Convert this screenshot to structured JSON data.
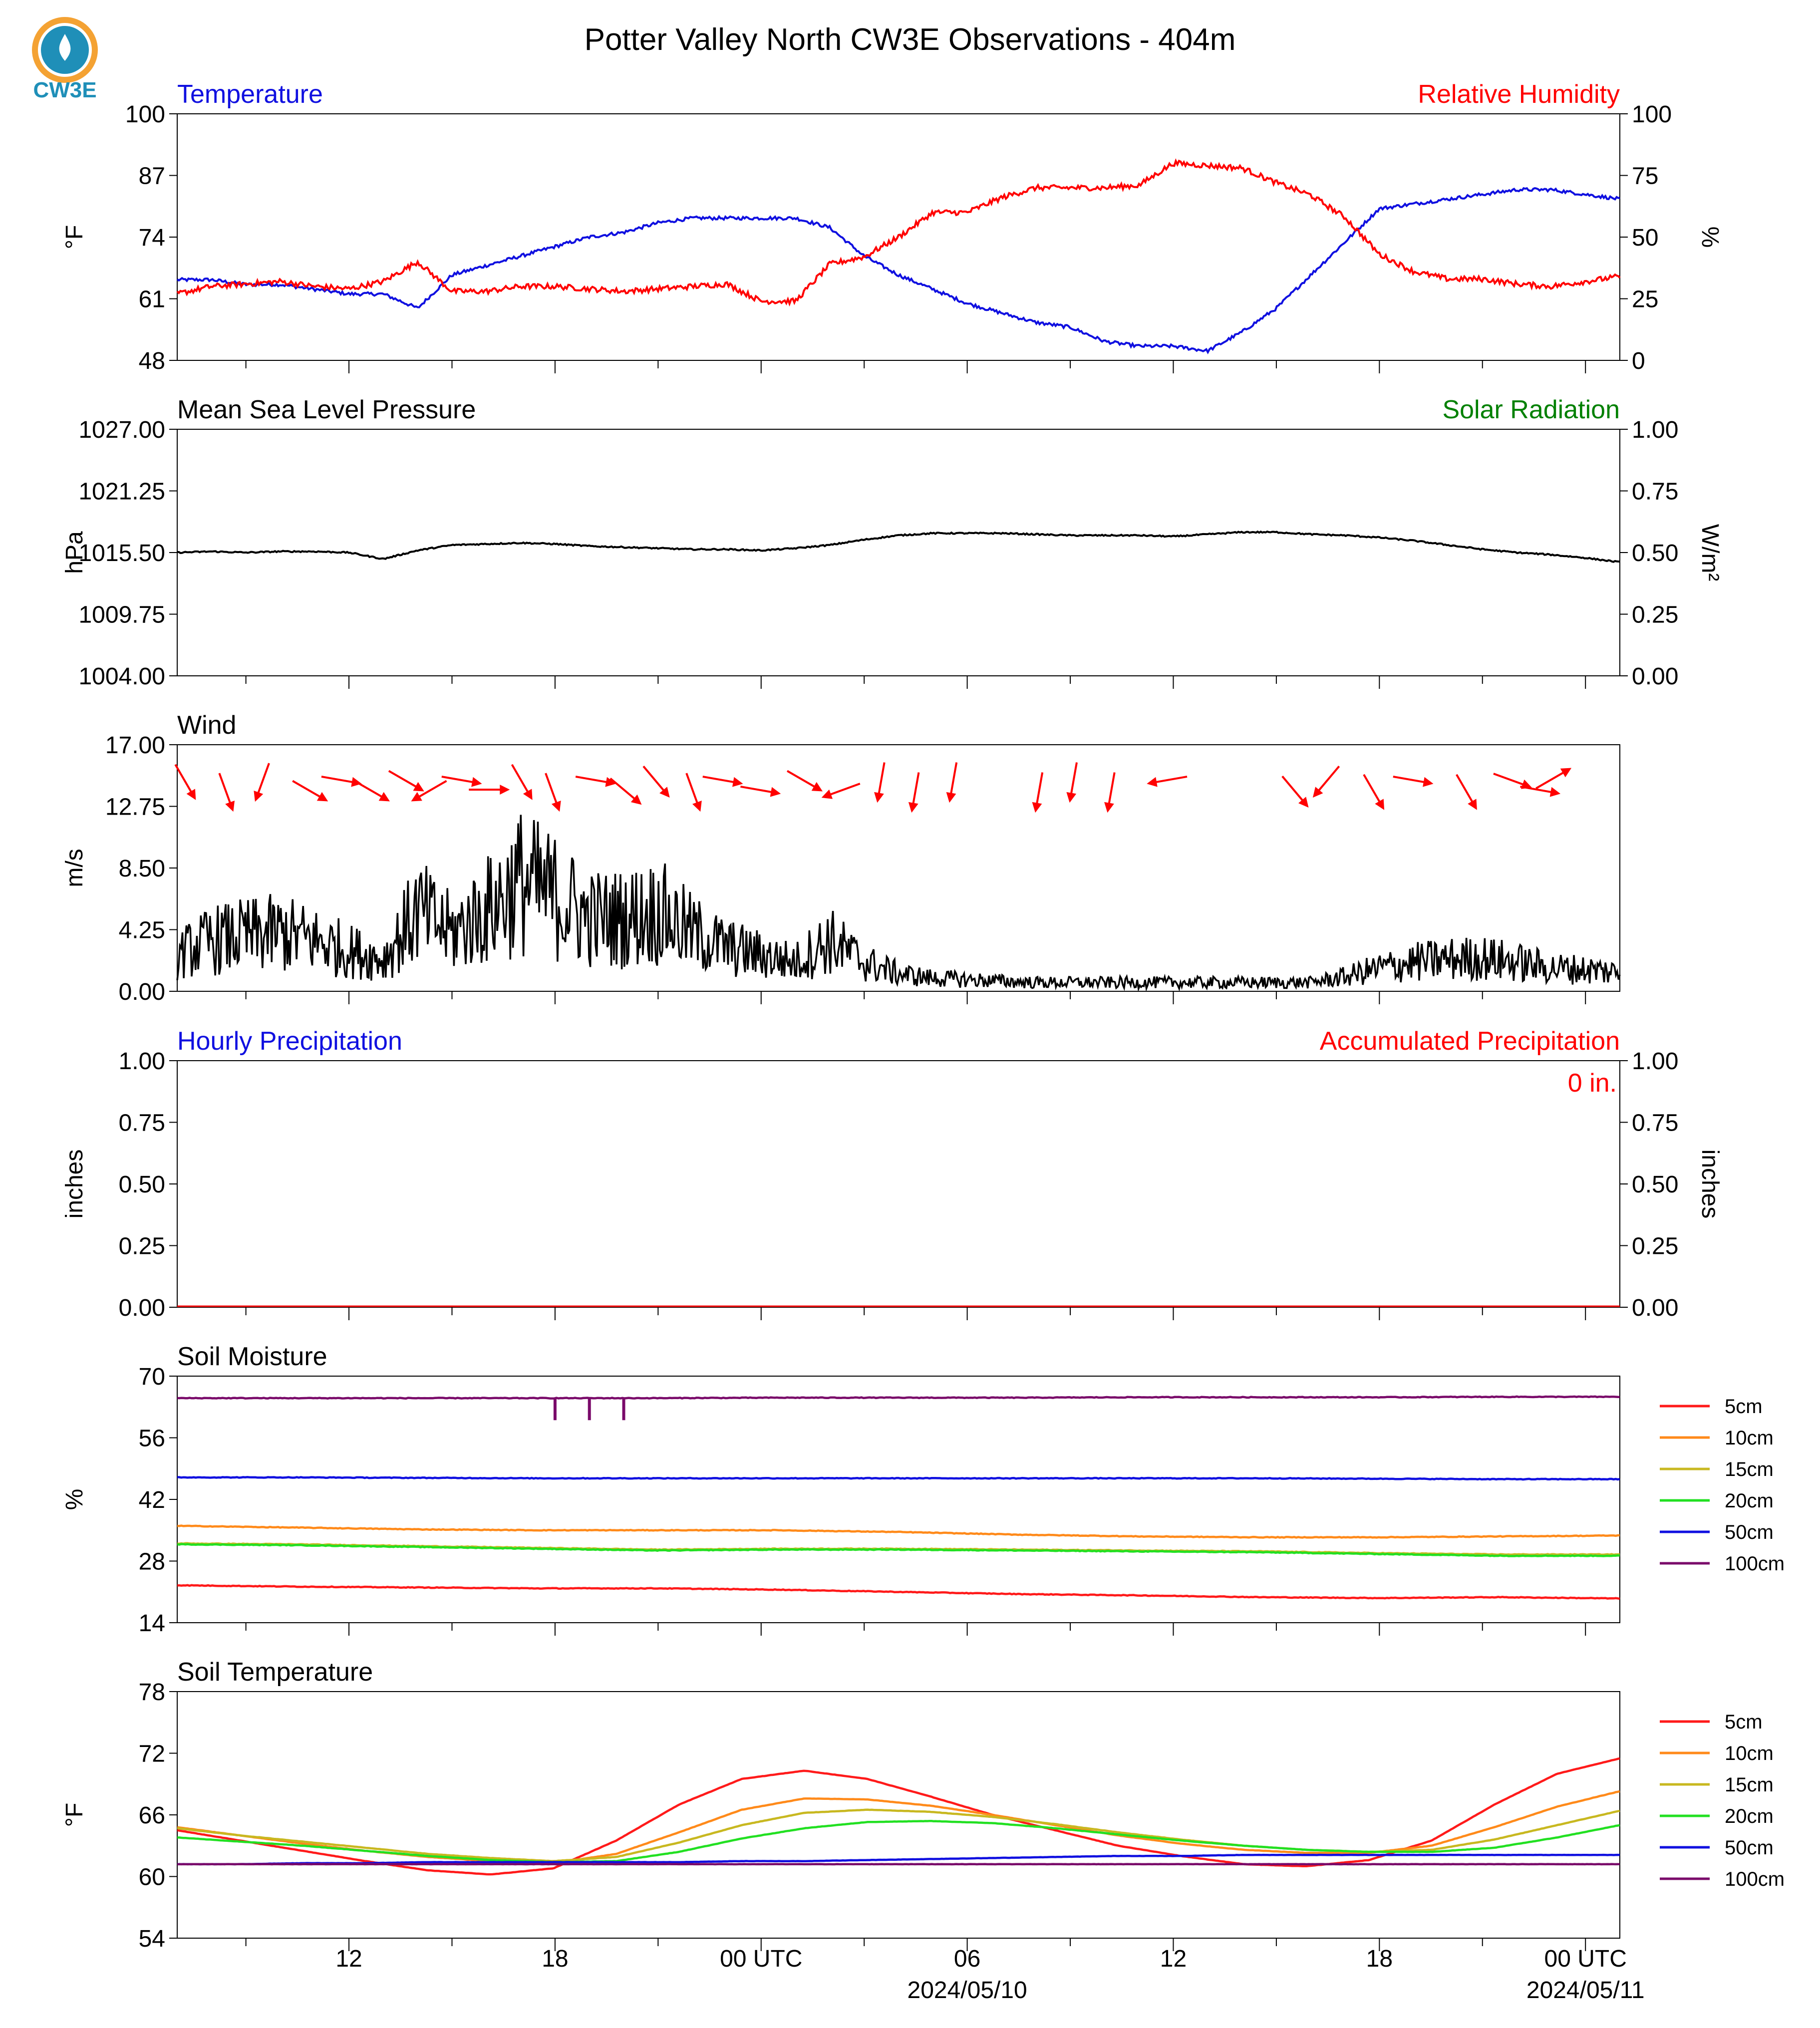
{
  "figure": {
    "title": "Potter Valley North CW3E Observations - 404m",
    "logo_text": "CW3E",
    "x_axis": {
      "hour_ticks": [
        "12",
        "18",
        "00 UTC",
        "06",
        "12",
        "18",
        "00 UTC"
      ],
      "date_labels": [
        "2024/05/10",
        "2024/05/11"
      ]
    }
  },
  "colors": {
    "temperature": "#1010e0",
    "humidity": "#ff0000",
    "pressure": "#000000",
    "solar": "#008000",
    "wind": "#000000",
    "wind_arrow": "#ff0000",
    "hourly_precip": "#1010e0",
    "accum_precip": "#ff0000",
    "logo": "#1f8fb8",
    "logo_accent": "#f4a233",
    "depth_5cm": "#ff1a1a",
    "depth_10cm": "#ff8a1a",
    "depth_15cm": "#c8b820",
    "depth_20cm": "#22e022",
    "depth_50cm": "#1010e0",
    "depth_100cm": "#7a0a6a"
  },
  "chart_data": [
    {
      "type": "line",
      "title_left": "Temperature",
      "title_right": "Relative Humidity",
      "ylabel_left": "°F",
      "ylabel_right": "%",
      "ylim_left": [
        48,
        100
      ],
      "ylim_right": [
        0,
        100
      ],
      "yticks_left": [
        "100",
        "87",
        "74",
        "61",
        "48"
      ],
      "yticks_right": [
        "100",
        "75",
        "50",
        "25",
        "0"
      ],
      "x_hours_utc_since_2024-05-09_07:00": [
        0,
        1,
        2,
        3,
        4,
        5,
        6,
        7,
        8,
        9,
        10,
        11,
        12,
        13,
        14,
        15,
        16,
        17,
        18,
        19,
        20,
        21,
        22,
        23,
        24,
        25,
        26,
        27,
        28,
        29,
        30,
        31,
        32,
        33,
        34,
        35,
        36,
        37,
        38,
        39,
        40,
        41,
        42
      ],
      "series": [
        {
          "name": "Temperature",
          "axis": "left",
          "values": [
            65,
            65,
            64,
            64,
            63,
            62,
            62,
            59,
            66,
            68,
            70,
            72,
            74,
            75,
            77,
            78,
            78,
            78,
            78,
            76,
            70,
            66,
            63,
            60,
            58,
            56,
            55,
            52,
            51,
            51,
            50,
            54,
            59,
            66,
            73,
            80,
            81,
            82,
            83,
            84,
            84,
            83,
            82
          ]
        },
        {
          "name": "Relative Humidity",
          "axis": "right",
          "values": [
            27,
            30,
            31,
            32,
            30,
            29,
            32,
            40,
            28,
            28,
            30,
            30,
            29,
            28,
            29,
            30,
            31,
            24,
            24,
            39,
            42,
            50,
            60,
            60,
            66,
            70,
            70,
            70,
            71,
            80,
            79,
            78,
            72,
            67,
            58,
            43,
            36,
            33,
            33,
            31,
            30,
            32,
            34
          ]
        }
      ]
    },
    {
      "type": "line",
      "title_left": "Mean Sea Level Pressure",
      "title_right": "Solar Radiation",
      "ylabel_left": "hPa",
      "ylabel_right": "W/m²",
      "ylim_left": [
        1004.0,
        1027.0
      ],
      "ylim_right": [
        0.0,
        1.0
      ],
      "yticks_left": [
        "1027.00",
        "1021.25",
        "1015.50",
        "1009.75",
        "1004.00"
      ],
      "yticks_right": [
        "1.00",
        "0.75",
        "0.50",
        "0.25",
        "0.00"
      ],
      "series": [
        {
          "name": "Mean Sea Level Pressure",
          "axis": "left",
          "values": [
            1015.5,
            1015.6,
            1015.5,
            1015.6,
            1015.6,
            1015.5,
            1014.9,
            1015.7,
            1016.2,
            1016.3,
            1016.4,
            1016.3,
            1016.1,
            1016.0,
            1015.9,
            1015.8,
            1015.8,
            1015.7,
            1015.9,
            1016.2,
            1016.7,
            1017.1,
            1017.3,
            1017.3,
            1017.3,
            1017.2,
            1017.1,
            1017.1,
            1017.1,
            1017.0,
            1017.2,
            1017.4,
            1017.4,
            1017.2,
            1017.1,
            1016.9,
            1016.6,
            1016.2,
            1015.8,
            1015.5,
            1015.3,
            1015.0,
            1014.6
          ]
        }
      ]
    },
    {
      "type": "line",
      "title_left": "Wind",
      "ylabel_left": "m/s",
      "ylim_left": [
        0.0,
        17.0
      ],
      "yticks_left": [
        "17.00",
        "12.75",
        "8.50",
        "4.25",
        "0.00"
      ],
      "series": [
        {
          "name": "Wind",
          "axis": "left",
          "values": [
            2.5,
            3.5,
            3.8,
            4.0,
            3.5,
            2.8,
            2.2,
            5.5,
            4.0,
            5.5,
            7.5,
            6.5,
            5.0,
            5.0,
            5.5,
            4.0,
            3.0,
            2.5,
            2.0,
            3.5,
            2.0,
            1.2,
            0.9,
            0.8,
            0.7,
            0.6,
            0.6,
            0.6,
            0.6,
            0.6,
            0.6,
            0.6,
            0.6,
            0.6,
            1.0,
            1.6,
            2.0,
            2.2,
            2.3,
            2.0,
            1.6,
            1.5,
            1.3
          ]
        }
      ],
      "wind_arrows_direction_deg_from": [
        330,
        340,
        20,
        300,
        280,
        300,
        300,
        60,
        280,
        270,
        330,
        340,
        280,
        310,
        320,
        340,
        280,
        280,
        300,
        70,
        10,
        10,
        10,
        10,
        10,
        10,
        80,
        320,
        40,
        330,
        280,
        330,
        290,
        280,
        240
      ],
      "wind_arrow_hours": [
        0.2,
        1.4,
        2.5,
        3.8,
        4.7,
        5.6,
        6.6,
        7.4,
        8.2,
        9.0,
        10.0,
        10.9,
        12.1,
        13.0,
        13.9,
        15.0,
        15.8,
        16.9,
        18.2,
        19.4,
        20.5,
        21.5,
        22.6,
        25.1,
        26.1,
        27.2,
        28.9,
        32.5,
        33.5,
        34.8,
        35.9,
        37.5,
        38.8,
        39.6,
        40.0
      ]
    },
    {
      "type": "line",
      "title_left": "Hourly Precipitation",
      "title_right": "Accumulated Precipitation",
      "annotation": "0 in.",
      "ylabel_left": "inches",
      "ylabel_right": "inches",
      "ylim_left": [
        0.0,
        1.0
      ],
      "ylim_right": [
        0.0,
        1.0
      ],
      "yticks_left": [
        "1.00",
        "0.75",
        "0.50",
        "0.25",
        "0.00"
      ],
      "yticks_right": [
        "1.00",
        "0.75",
        "0.50",
        "0.25",
        "0.00"
      ],
      "series": [
        {
          "name": "Hourly Precipitation",
          "axis": "left",
          "values": [
            0,
            0
          ]
        },
        {
          "name": "Accumulated Precipitation",
          "axis": "right",
          "values": [
            0,
            0
          ]
        }
      ]
    },
    {
      "type": "line",
      "title_left": "Soil Moisture",
      "ylabel_left": "%",
      "ylim_left": [
        14,
        70
      ],
      "yticks_left": [
        "70",
        "56",
        "42",
        "28",
        "14"
      ],
      "legend": [
        "5cm",
        "10cm",
        "15cm",
        "20cm",
        "50cm",
        "100cm"
      ],
      "series": [
        {
          "name": "5cm",
          "values": [
            22.5,
            22.2,
            22.0,
            21.8,
            21.8,
            21.5,
            21.0,
            20.5,
            20.2,
            19.8,
            19.6,
            19.8,
            19.5
          ]
        },
        {
          "name": "10cm",
          "values": [
            36.0,
            35.6,
            35.2,
            35.0,
            35.0,
            35.0,
            34.6,
            34.0,
            33.6,
            33.4,
            33.4,
            33.6,
            33.8
          ]
        },
        {
          "name": "15cm",
          "values": [
            32.0,
            31.8,
            31.4,
            31.0,
            30.6,
            30.8,
            30.8,
            30.6,
            30.4,
            30.2,
            29.8,
            29.5,
            29.5
          ]
        },
        {
          "name": "20cm",
          "values": [
            31.8,
            31.6,
            31.2,
            30.8,
            30.4,
            30.6,
            30.6,
            30.4,
            30.2,
            30.0,
            29.6,
            29.2,
            29.2
          ]
        },
        {
          "name": "50cm",
          "values": [
            47.0,
            47.0,
            46.9,
            46.8,
            46.8,
            46.8,
            46.8,
            46.8,
            46.8,
            46.8,
            46.7,
            46.6,
            46.6
          ]
        },
        {
          "name": "100cm",
          "values": [
            65.0,
            65.0,
            65.0,
            65.0,
            65.0,
            65.1,
            65.1,
            65.1,
            65.2,
            65.2,
            65.2,
            65.3,
            65.3
          ]
        }
      ],
      "dips_100cm_hours": [
        11.0,
        12.0,
        13.0
      ],
      "dip_100cm_value": 60.0
    },
    {
      "type": "line",
      "title_left": "Soil Temperature",
      "ylabel_left": "°F",
      "ylim_left": [
        54,
        78
      ],
      "yticks_left": [
        "78",
        "72",
        "66",
        "60",
        "54"
      ],
      "legend": [
        "5cm",
        "10cm",
        "15cm",
        "20cm",
        "50cm",
        "100cm"
      ],
      "series": [
        {
          "name": "5cm",
          "values": [
            64.5,
            63.5,
            62.5,
            61.5,
            60.6,
            60.2,
            60.8,
            63.5,
            67.0,
            69.5,
            70.3,
            69.5,
            67.8,
            66.0,
            64.5,
            63.0,
            62.0,
            61.2,
            61.0,
            61.6,
            63.5,
            67.0,
            70.0,
            71.5
          ]
        },
        {
          "name": "10cm",
          "values": [
            64.8,
            64.0,
            63.2,
            62.5,
            61.9,
            61.5,
            61.3,
            62.2,
            64.3,
            66.5,
            67.6,
            67.5,
            66.9,
            66.0,
            65.0,
            64.0,
            63.2,
            62.6,
            62.3,
            62.3,
            63.0,
            64.8,
            66.8,
            68.3
          ]
        },
        {
          "name": "15cm",
          "values": [
            64.7,
            64.0,
            63.4,
            62.8,
            62.2,
            61.8,
            61.5,
            61.9,
            63.3,
            65.0,
            66.2,
            66.5,
            66.3,
            65.8,
            65.1,
            64.3,
            63.6,
            63.0,
            62.6,
            62.4,
            62.6,
            63.6,
            65.0,
            66.4
          ]
        },
        {
          "name": "20cm",
          "values": [
            63.8,
            63.4,
            63.0,
            62.5,
            62.0,
            61.6,
            61.4,
            61.5,
            62.4,
            63.7,
            64.7,
            65.3,
            65.4,
            65.2,
            64.7,
            64.1,
            63.5,
            63.0,
            62.6,
            62.4,
            62.4,
            62.8,
            63.8,
            65.0
          ]
        },
        {
          "name": "50cm",
          "values": [
            61.2,
            61.2,
            61.3,
            61.3,
            61.4,
            61.4,
            61.4,
            61.4,
            61.4,
            61.5,
            61.5,
            61.6,
            61.7,
            61.8,
            61.9,
            62.0,
            62.0,
            62.1,
            62.1,
            62.1,
            62.1,
            62.1,
            62.1,
            62.1
          ]
        },
        {
          "name": "100cm",
          "values": [
            61.2,
            61.2,
            61.2,
            61.2,
            61.2,
            61.2,
            61.2,
            61.2,
            61.2,
            61.2,
            61.2,
            61.2,
            61.2,
            61.2,
            61.2,
            61.2,
            61.2,
            61.2,
            61.2,
            61.2,
            61.2,
            61.2,
            61.2,
            61.2
          ]
        }
      ]
    }
  ]
}
